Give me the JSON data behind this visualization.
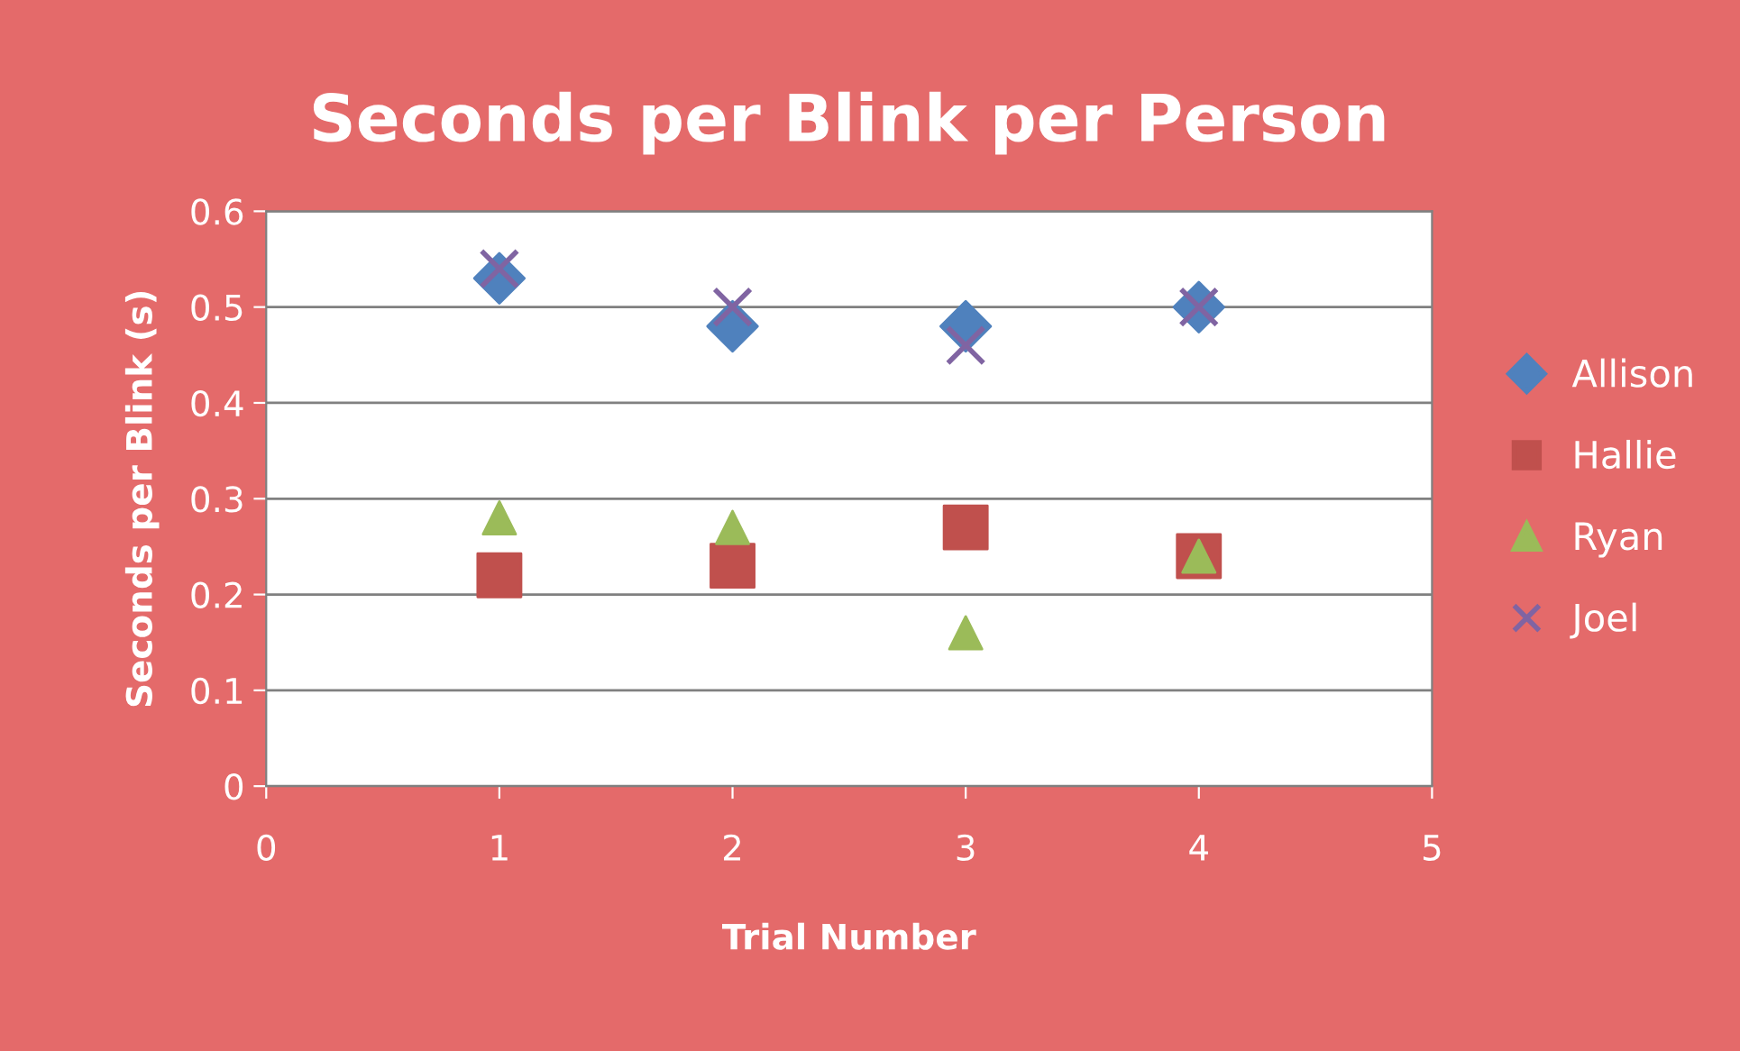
{
  "chart_data": {
    "type": "scatter",
    "title": "Seconds per Blink per Person",
    "xlabel": "Trial Number",
    "ylabel": "Seconds per Blink (s)",
    "xlim": [
      0,
      5
    ],
    "xticks": [
      0,
      1,
      2,
      3,
      4,
      5
    ],
    "ylim": [
      0,
      0.6
    ],
    "yticks": [
      0,
      0.1,
      0.2,
      0.3,
      0.4,
      0.5,
      0.6
    ],
    "grid": "y",
    "legend": "right",
    "series": [
      {
        "name": "Allison",
        "color": "#4f81bd",
        "marker": "diamond",
        "x": [
          1,
          2,
          3,
          4
        ],
        "values": [
          0.53,
          0.48,
          0.48,
          0.5
        ]
      },
      {
        "name": "Hallie",
        "color": "#c0504d",
        "marker": "square",
        "x": [
          1,
          2,
          3,
          4
        ],
        "values": [
          0.22,
          0.23,
          0.27,
          0.24
        ]
      },
      {
        "name": "Ryan",
        "color": "#9bbb59",
        "marker": "triangle",
        "x": [
          1,
          2,
          3,
          4
        ],
        "values": [
          0.28,
          0.27,
          0.16,
          0.24
        ]
      },
      {
        "name": "Joel",
        "color": "#8064a2",
        "marker": "cross",
        "x": [
          1,
          2,
          3,
          4
        ],
        "values": [
          0.54,
          0.5,
          0.46,
          0.5
        ]
      }
    ]
  }
}
